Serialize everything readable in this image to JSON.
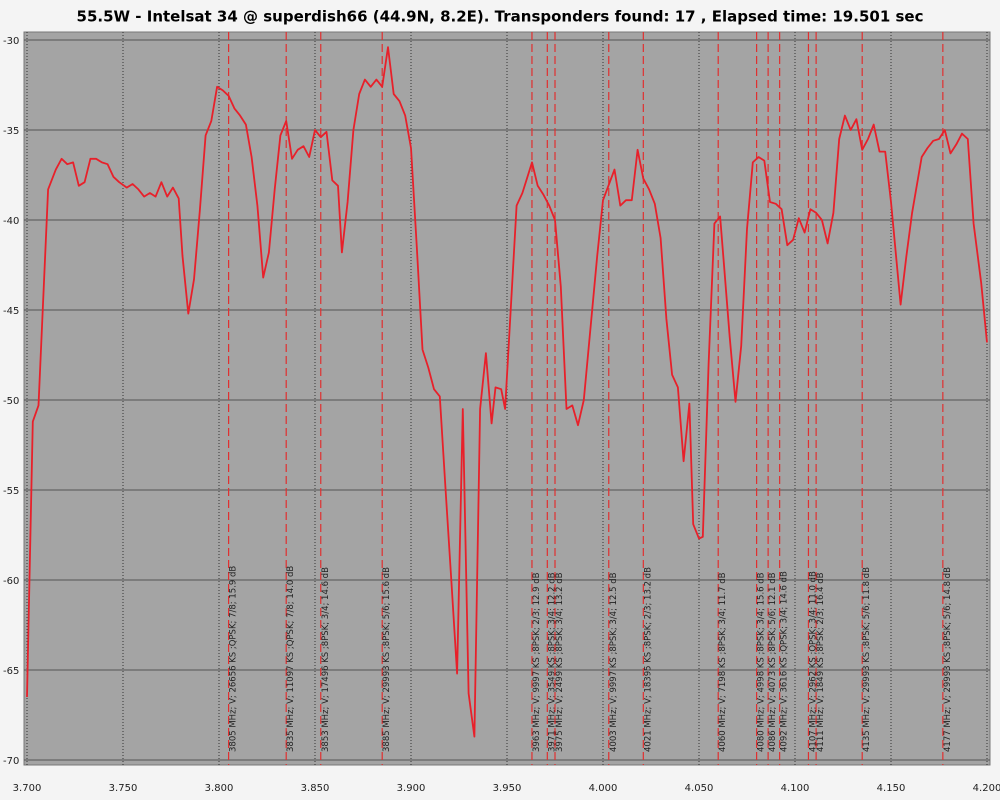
{
  "chart_data": {
    "type": "line",
    "title": "55.5W - Intelsat 34 @ superdish66 (44.9N, 8.2E). Transponders found: 17 , Elapsed time: 19.501 sec",
    "xlim": [
      3.7,
      4.2
    ],
    "xticks": [
      {
        "value": 3.7,
        "label": "3.700"
      },
      {
        "value": 3.75,
        "label": "3.750"
      },
      {
        "value": 3.8,
        "label": "3.800"
      },
      {
        "value": 3.85,
        "label": "3.850"
      },
      {
        "value": 3.9,
        "label": "3.900"
      },
      {
        "value": 3.95,
        "label": "3.950"
      },
      {
        "value": 4.0,
        "label": "4.000"
      },
      {
        "value": 4.05,
        "label": "4.050"
      },
      {
        "value": 4.1,
        "label": "4.100"
      },
      {
        "value": 4.15,
        "label": "4.150"
      },
      {
        "value": 4.2,
        "label": "4.200"
      }
    ],
    "ylim": [
      -70,
      -30
    ],
    "yticks": [
      -30,
      -35,
      -40,
      -45,
      -50,
      -55,
      -60,
      -65,
      -70
    ],
    "grid": true,
    "marker_color": "#e03030",
    "x": [
      3.7,
      3.703,
      3.706,
      3.711,
      3.715,
      3.718,
      3.721,
      3.724,
      3.727,
      3.73,
      3.733,
      3.736,
      3.739,
      3.742,
      3.745,
      3.748,
      3.752,
      3.755,
      3.758,
      3.761,
      3.764,
      3.767,
      3.77,
      3.773,
      3.776,
      3.779,
      3.781,
      3.784,
      3.787,
      3.79,
      3.793,
      3.796,
      3.799,
      3.802,
      3.805,
      3.808,
      3.811,
      3.814,
      3.817,
      3.82,
      3.823,
      3.826,
      3.829,
      3.832,
      3.835,
      3.838,
      3.841,
      3.844,
      3.847,
      3.85,
      3.853,
      3.856,
      3.859,
      3.862,
      3.864,
      3.867,
      3.87,
      3.873,
      3.876,
      3.879,
      3.882,
      3.885,
      3.888,
      3.891,
      3.894,
      3.897,
      3.9,
      3.903,
      3.906,
      3.909,
      3.912,
      3.915,
      3.918,
      3.921,
      3.924,
      3.927,
      3.93,
      3.933,
      3.936,
      3.939,
      3.942,
      3.944,
      3.947,
      3.949,
      3.955,
      3.958,
      3.963,
      3.966,
      3.969,
      3.972,
      3.975,
      3.978,
      3.981,
      3.984,
      3.987,
      3.99,
      3.997,
      4.0,
      4.006,
      4.009,
      4.012,
      4.015,
      4.018,
      4.021,
      4.024,
      4.027,
      4.03,
      4.033,
      4.036,
      4.039,
      4.042,
      4.045,
      4.047,
      4.05,
      4.052,
      4.055,
      4.058,
      4.061,
      4.063,
      4.066,
      4.069,
      4.072,
      4.075,
      4.078,
      4.081,
      4.084,
      4.087,
      4.09,
      4.093,
      4.096,
      4.099,
      4.102,
      4.105,
      4.108,
      4.111,
      4.114,
      4.117,
      4.12,
      4.123,
      4.126,
      4.129,
      4.132,
      4.135,
      4.138,
      4.141,
      4.144,
      4.147,
      4.15,
      4.155,
      4.158,
      4.161,
      4.166,
      4.169,
      4.172,
      4.175,
      4.178,
      4.181,
      4.184,
      4.187,
      4.19,
      4.193,
      4.197,
      4.2
    ],
    "series": [
      {
        "color": "#e8202a",
        "values": [
          -66.5,
          -51.2,
          -50.3,
          -38.3,
          -37.2,
          -36.6,
          -36.9,
          -36.8,
          -38.1,
          -37.9,
          -36.6,
          -36.6,
          -36.8,
          -36.9,
          -37.6,
          -37.9,
          -38.2,
          -38.0,
          -38.3,
          -38.7,
          -38.5,
          -38.7,
          -37.9,
          -38.7,
          -38.2,
          -38.8,
          -42.0,
          -45.2,
          -43.3,
          -39.5,
          -35.3,
          -34.5,
          -32.6,
          -32.8,
          -33.1,
          -33.8,
          -34.2,
          -34.7,
          -36.5,
          -39.2,
          -43.2,
          -41.8,
          -38.3,
          -35.3,
          -34.5,
          -36.6,
          -36.1,
          -35.9,
          -36.5,
          -35.0,
          -35.4,
          -35.1,
          -37.8,
          -38.1,
          -41.8,
          -39.0,
          -35.0,
          -33.0,
          -32.2,
          -32.6,
          -32.2,
          -32.6,
          -30.4,
          -33.0,
          -33.4,
          -34.2,
          -36.0,
          -41.5,
          -47.2,
          -48.2,
          -49.4,
          -49.8,
          -55.0,
          -60.0,
          -65.2,
          -50.5,
          -66.3,
          -68.7,
          -50.5,
          -47.4,
          -51.3,
          -49.3,
          -49.4,
          -50.5,
          -39.2,
          -38.5,
          -36.8,
          -38.1,
          -38.6,
          -39.2,
          -40.0,
          -43.7,
          -50.5,
          -50.3,
          -51.4,
          -50.0,
          -42.0,
          -38.9,
          -37.2,
          -39.2,
          -38.9,
          -38.9,
          -36.1,
          -37.7,
          -38.3,
          -39.1,
          -41.0,
          -45.5,
          -48.6,
          -49.3,
          -53.4,
          -50.2,
          -56.9,
          -57.7,
          -57.6,
          -48.0,
          -40.2,
          -39.8,
          -42.5,
          -46.5,
          -50.1,
          -47.0,
          -40.5,
          -36.8,
          -36.5,
          -36.7,
          -39.0,
          -39.1,
          -39.4,
          -41.4,
          -41.1,
          -39.9,
          -40.7,
          -39.4,
          -39.6,
          -40.0,
          -41.3,
          -39.6,
          -35.5,
          -34.2,
          -35.0,
          -34.4,
          -36.1,
          -35.5,
          -34.7,
          -36.2,
          -36.2,
          -39.0,
          -44.7,
          -42.0,
          -39.6,
          -36.5,
          -36.0,
          -35.6,
          -35.5,
          -35.0,
          -36.3,
          -35.8,
          -35.2,
          -35.5,
          -40.2,
          -43.5,
          -46.8
        ]
      }
    ],
    "markers": [
      {
        "x": 3.805,
        "label": "3805 MHz; V; 26656 KS ;QPSK; 7/8; 15.9 dB"
      },
      {
        "x": 3.835,
        "label": "3835 MHz; V; 11097 KS ;QPSK; 7/8; 14.0 dB"
      },
      {
        "x": 3.853,
        "label": "3853 MHz; V; 17496 KS ;8PSK; 3/4; 14.6 dB"
      },
      {
        "x": 3.885,
        "label": "3885 MHz; V; 29993 KS ;8PSK; 5/6; 15.6 dB"
      },
      {
        "x": 3.963,
        "label": "3963 MHz; V; 9997 KS ;8PSK; 2/3; 12.9 dB"
      },
      {
        "x": 3.971,
        "label": "3971 MHz; V; 3549 KS ;8PSK; 3/4; 12.2 dB"
      },
      {
        "x": 3.975,
        "label": "3975 MHz; V; 2499 KS ;8PSK; 3/4; 13.2 dB"
      },
      {
        "x": 4.003,
        "label": "4003 MHz; V; 9997 KS ;8PSK; 3/4; 12.5 dB"
      },
      {
        "x": 4.021,
        "label": "4021 MHz; V; 18395 KS ;8PSK; 2/3; 13.2 dB"
      },
      {
        "x": 4.06,
        "label": "4060 MHz; V; 7198 KS ;8PSK; 3/4; 11.7 dB"
      },
      {
        "x": 4.08,
        "label": "4080 MHz; V; 4998 KS ;8PSK; 3/4; 15.6 dB"
      },
      {
        "x": 4.086,
        "label": "4086 MHz; V; 4073 KS ;8PSK; 5/6; 12.1 dB"
      },
      {
        "x": 4.092,
        "label": "4092 MHz; V; 3616 KS ;QPSK; 3/4; 14.6 dB"
      },
      {
        "x": 4.107,
        "label": "4107 MHz; V; 2962 KS ;QPSK; 3/4; 11.0 dB"
      },
      {
        "x": 4.111,
        "label": "4111 MHz; V; 1849 KS ;8PSK; 2/3; 16.4 dB"
      },
      {
        "x": 4.135,
        "label": "4135 MHz; V; 29993 KS ;8PSK; 5/6; 11.8 dB"
      },
      {
        "x": 4.177,
        "label": "4177 MHz; V; 29993 KS ;8PSK; 5/6; 14.8 dB"
      }
    ]
  }
}
